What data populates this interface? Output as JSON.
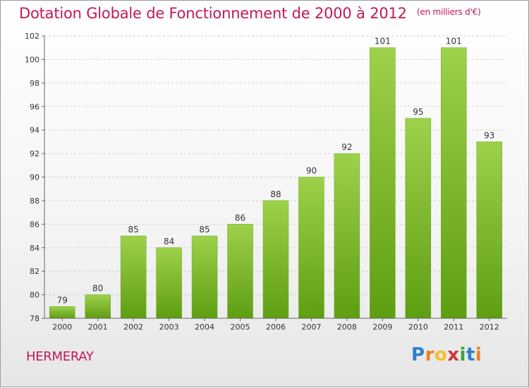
{
  "header": {
    "title": "Dotation Globale de Fonctionnement de 2000 à 2012",
    "unit": "(en milliers d'€)"
  },
  "footer": {
    "commune": "HERMERAY",
    "logo": "Proxiti"
  },
  "colors": {
    "title": "#c2185b",
    "bar_light": "#9ed14b",
    "bar_dark": "#5e9e12"
  },
  "chart_data": {
    "type": "bar",
    "title": "Dotation Globale de Fonctionnement de 2000 à 2012",
    "subtitle": "(en milliers d'€)",
    "categories": [
      "2000",
      "2001",
      "2002",
      "2003",
      "2004",
      "2005",
      "2006",
      "2007",
      "2008",
      "2009",
      "2010",
      "2011",
      "2012"
    ],
    "values": [
      79,
      80,
      85,
      84,
      85,
      86,
      88,
      90,
      92,
      101,
      95,
      101,
      93
    ],
    "ylim": [
      78,
      102
    ],
    "yticks": [
      78,
      80,
      82,
      84,
      86,
      88,
      90,
      92,
      94,
      96,
      98,
      100,
      102
    ],
    "grid": true
  }
}
